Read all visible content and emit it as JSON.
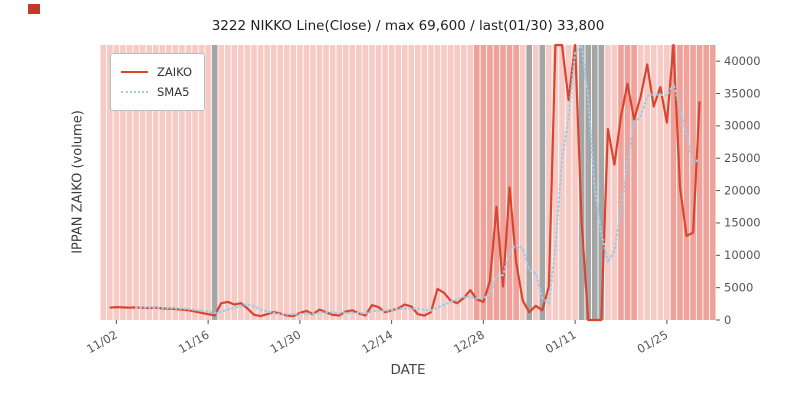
{
  "chart_data": {
    "type": "line",
    "title": "3222 NIKKO Line(Close) / max 69,600 / last(01/30) 33,800",
    "xlabel": "DATE",
    "ylabel": "IPPAN ZAIKO (volume)",
    "ylim": [
      0,
      42500
    ],
    "yticks": [
      0,
      5000,
      10000,
      15000,
      20000,
      25000,
      30000,
      35000,
      40000
    ],
    "xticks": [
      "11/02",
      "11/16",
      "11/30",
      "12/14",
      "12/28",
      "01/11",
      "01/25"
    ],
    "x_domain_padding": {
      "before": [
        "10/31"
      ],
      "after": [
        "01/31",
        "02/01"
      ]
    },
    "annotations": {
      "max_value": 69600,
      "last_date": "01/30",
      "last_value": 33800
    },
    "legend": {
      "position": "upper-left",
      "entries": [
        {
          "name": "ZAIKO",
          "style": "solid",
          "color": "#d8462f"
        },
        {
          "name": "SMA5",
          "style": "dotted",
          "color": "#9fcbe4"
        }
      ]
    },
    "series": [
      {
        "name": "ZAIKO",
        "dates": [
          "11/01",
          "11/02",
          "11/03",
          "11/04",
          "11/05",
          "11/06",
          "11/07",
          "11/08",
          "11/09",
          "11/10",
          "11/11",
          "11/12",
          "11/13",
          "11/14",
          "11/15",
          "11/16",
          "11/17",
          "11/18",
          "11/19",
          "11/20",
          "11/21",
          "11/22",
          "11/23",
          "11/24",
          "11/25",
          "11/26",
          "11/27",
          "11/28",
          "11/29",
          "11/30",
          "12/01",
          "12/02",
          "12/03",
          "12/04",
          "12/05",
          "12/06",
          "12/07",
          "12/08",
          "12/09",
          "12/10",
          "12/11",
          "12/12",
          "12/13",
          "12/14",
          "12/15",
          "12/16",
          "12/17",
          "12/18",
          "12/19",
          "12/20",
          "12/21",
          "12/22",
          "12/23",
          "12/24",
          "12/25",
          "12/26",
          "12/27",
          "12/28",
          "12/29",
          "12/30",
          "12/31",
          "01/01",
          "01/02",
          "01/03",
          "01/04",
          "01/05",
          "01/06",
          "01/07",
          "01/08",
          "01/09",
          "01/10",
          "01/11",
          "01/12",
          "01/13",
          "01/14",
          "01/15",
          "01/16",
          "01/17",
          "01/18",
          "01/19",
          "01/20",
          "01/21",
          "01/22",
          "01/23",
          "01/24",
          "01/25",
          "01/26",
          "01/27",
          "01/28",
          "01/29",
          "01/30"
        ],
        "values": [
          1900,
          2000,
          1950,
          1900,
          1950,
          1900,
          1850,
          1900,
          1800,
          1750,
          1700,
          1600,
          1500,
          1300,
          1100,
          900,
          700,
          2600,
          2800,
          2400,
          2600,
          1800,
          800,
          600,
          900,
          1200,
          1000,
          700,
          600,
          1100,
          1400,
          900,
          1600,
          1200,
          800,
          700,
          1300,
          1500,
          1000,
          700,
          2300,
          2000,
          1200,
          1500,
          1800,
          2400,
          2100,
          900,
          700,
          1200,
          4800,
          4200,
          3000,
          2600,
          3400,
          4600,
          3200,
          2800,
          6000,
          17500,
          5200,
          20500,
          9000,
          3000,
          1200,
          2200,
          1500,
          5200,
          46000,
          69600,
          34000,
          52000,
          15000,
          0,
          0,
          0,
          29500,
          24000,
          31500,
          36500,
          31000,
          34500,
          39500,
          33000,
          36000,
          30500,
          43500,
          20500,
          13000,
          13500,
          33800
        ]
      },
      {
        "name": "SMA5",
        "derived": "5-point moving average of ZAIKO",
        "window": 5
      }
    ],
    "background": {
      "base_stripe_color": "#f6cbc6",
      "dark_stripe_color": "#efa29a",
      "gray_band_color": "#a5a5a5",
      "gap_color": "#ffffff",
      "gray_spans": [
        [
          "11/17",
          "11/17"
        ],
        [
          "01/04",
          "01/04"
        ],
        [
          "01/06",
          "01/06"
        ],
        [
          "01/12",
          "01/15"
        ]
      ],
      "dark_spans": [
        [
          "12/27",
          "01/02"
        ],
        [
          "01/18",
          "01/20"
        ],
        [
          "01/26",
          "02/01"
        ]
      ]
    },
    "colors": {
      "zaiko_line": "#d8462f",
      "sma5_line": "#9fcbe4",
      "tick_text": "#555555",
      "axis_label_text": "#444444",
      "title_text": "#1f1f1f",
      "corner_mark": "#c0392b"
    }
  }
}
